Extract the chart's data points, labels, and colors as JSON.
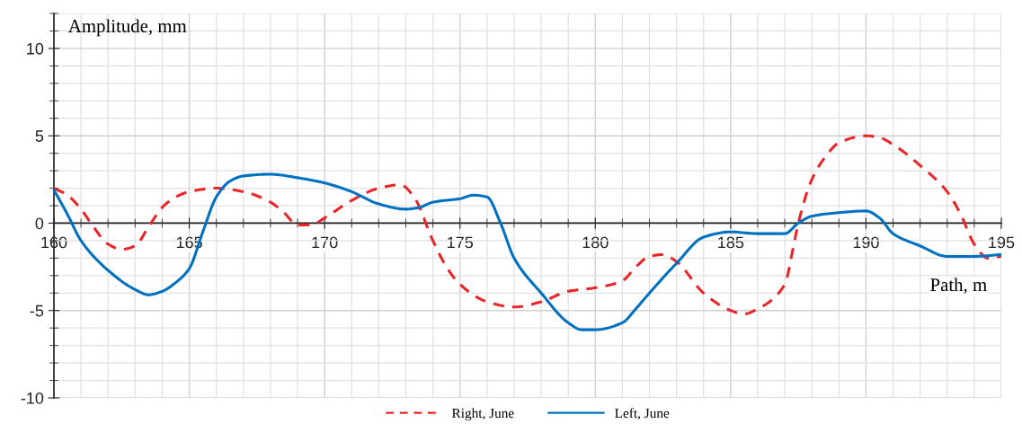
{
  "chart_data": {
    "type": "line",
    "xlabel": "Path, m",
    "ylabel": "Amplitude, mm",
    "xlim": [
      160,
      195
    ],
    "xticks": [
      160,
      165,
      170,
      175,
      180,
      185,
      190,
      195
    ],
    "ylim": [
      -10,
      12
    ],
    "yticks": [
      -10,
      -5,
      0,
      5,
      10
    ],
    "grid": true,
    "legend": "bottom",
    "marker": "none",
    "series": [
      {
        "name": "Right, June",
        "color": "#e8262a",
        "line_style": "dashed",
        "x": [
          160,
          160.5,
          161,
          161.5,
          162,
          162.5,
          163,
          163.5,
          164,
          164.5,
          165,
          166,
          167,
          168,
          168.5,
          169,
          169.5,
          170,
          171,
          172,
          172.8,
          173.3,
          174,
          174.5,
          175,
          176,
          177,
          178,
          179,
          180,
          181,
          181.5,
          182,
          182.5,
          183,
          184,
          185,
          185.5,
          186,
          187,
          187.3,
          187.5,
          188,
          188.5,
          189,
          190,
          190.5,
          191,
          192,
          193,
          193.5,
          194,
          194.5,
          195
        ],
        "values": [
          2.0,
          1.6,
          0.8,
          -0.3,
          -1.2,
          -1.5,
          -1.3,
          -0.2,
          0.9,
          1.5,
          1.8,
          2.0,
          1.8,
          1.2,
          0.6,
          -0.1,
          -0.1,
          0.3,
          1.3,
          2.0,
          2.2,
          1.5,
          -1.0,
          -2.5,
          -3.5,
          -4.5,
          -4.8,
          -4.5,
          -3.9,
          -3.7,
          -3.3,
          -2.5,
          -1.9,
          -1.8,
          -2.2,
          -4.0,
          -5.0,
          -5.2,
          -4.9,
          -3.5,
          -1.5,
          0.0,
          2.5,
          3.8,
          4.6,
          5.0,
          4.9,
          4.5,
          3.3,
          1.8,
          0.5,
          -1.2,
          -2.0,
          -1.9
        ]
      },
      {
        "name": "Left, June",
        "color": "#0070c0",
        "line_style": "solid",
        "x": [
          160,
          160.5,
          161,
          162,
          163,
          163.5,
          164,
          164.5,
          165,
          165.5,
          166,
          166.5,
          167,
          168,
          169,
          170,
          171,
          172,
          173,
          173.5,
          174,
          175,
          175.5,
          176,
          176.5,
          177,
          178,
          179,
          179.5,
          180,
          181,
          181.5,
          182,
          183,
          184,
          185,
          186,
          187,
          187.5,
          188,
          189,
          190,
          190.5,
          191,
          192,
          193,
          194,
          195
        ],
        "values": [
          1.9,
          0.5,
          -1.0,
          -2.7,
          -3.8,
          -4.1,
          -3.9,
          -3.4,
          -2.6,
          -0.5,
          1.5,
          2.4,
          2.7,
          2.8,
          2.6,
          2.3,
          1.8,
          1.1,
          0.8,
          0.9,
          1.2,
          1.4,
          1.6,
          1.5,
          0.0,
          -2.0,
          -4.0,
          -5.7,
          -6.1,
          -6.1,
          -5.7,
          -4.9,
          -4.0,
          -2.3,
          -0.8,
          -0.5,
          -0.6,
          -0.6,
          0.0,
          0.4,
          0.6,
          0.7,
          0.3,
          -0.6,
          -1.3,
          -1.9,
          -1.9,
          -1.8
        ]
      }
    ]
  }
}
